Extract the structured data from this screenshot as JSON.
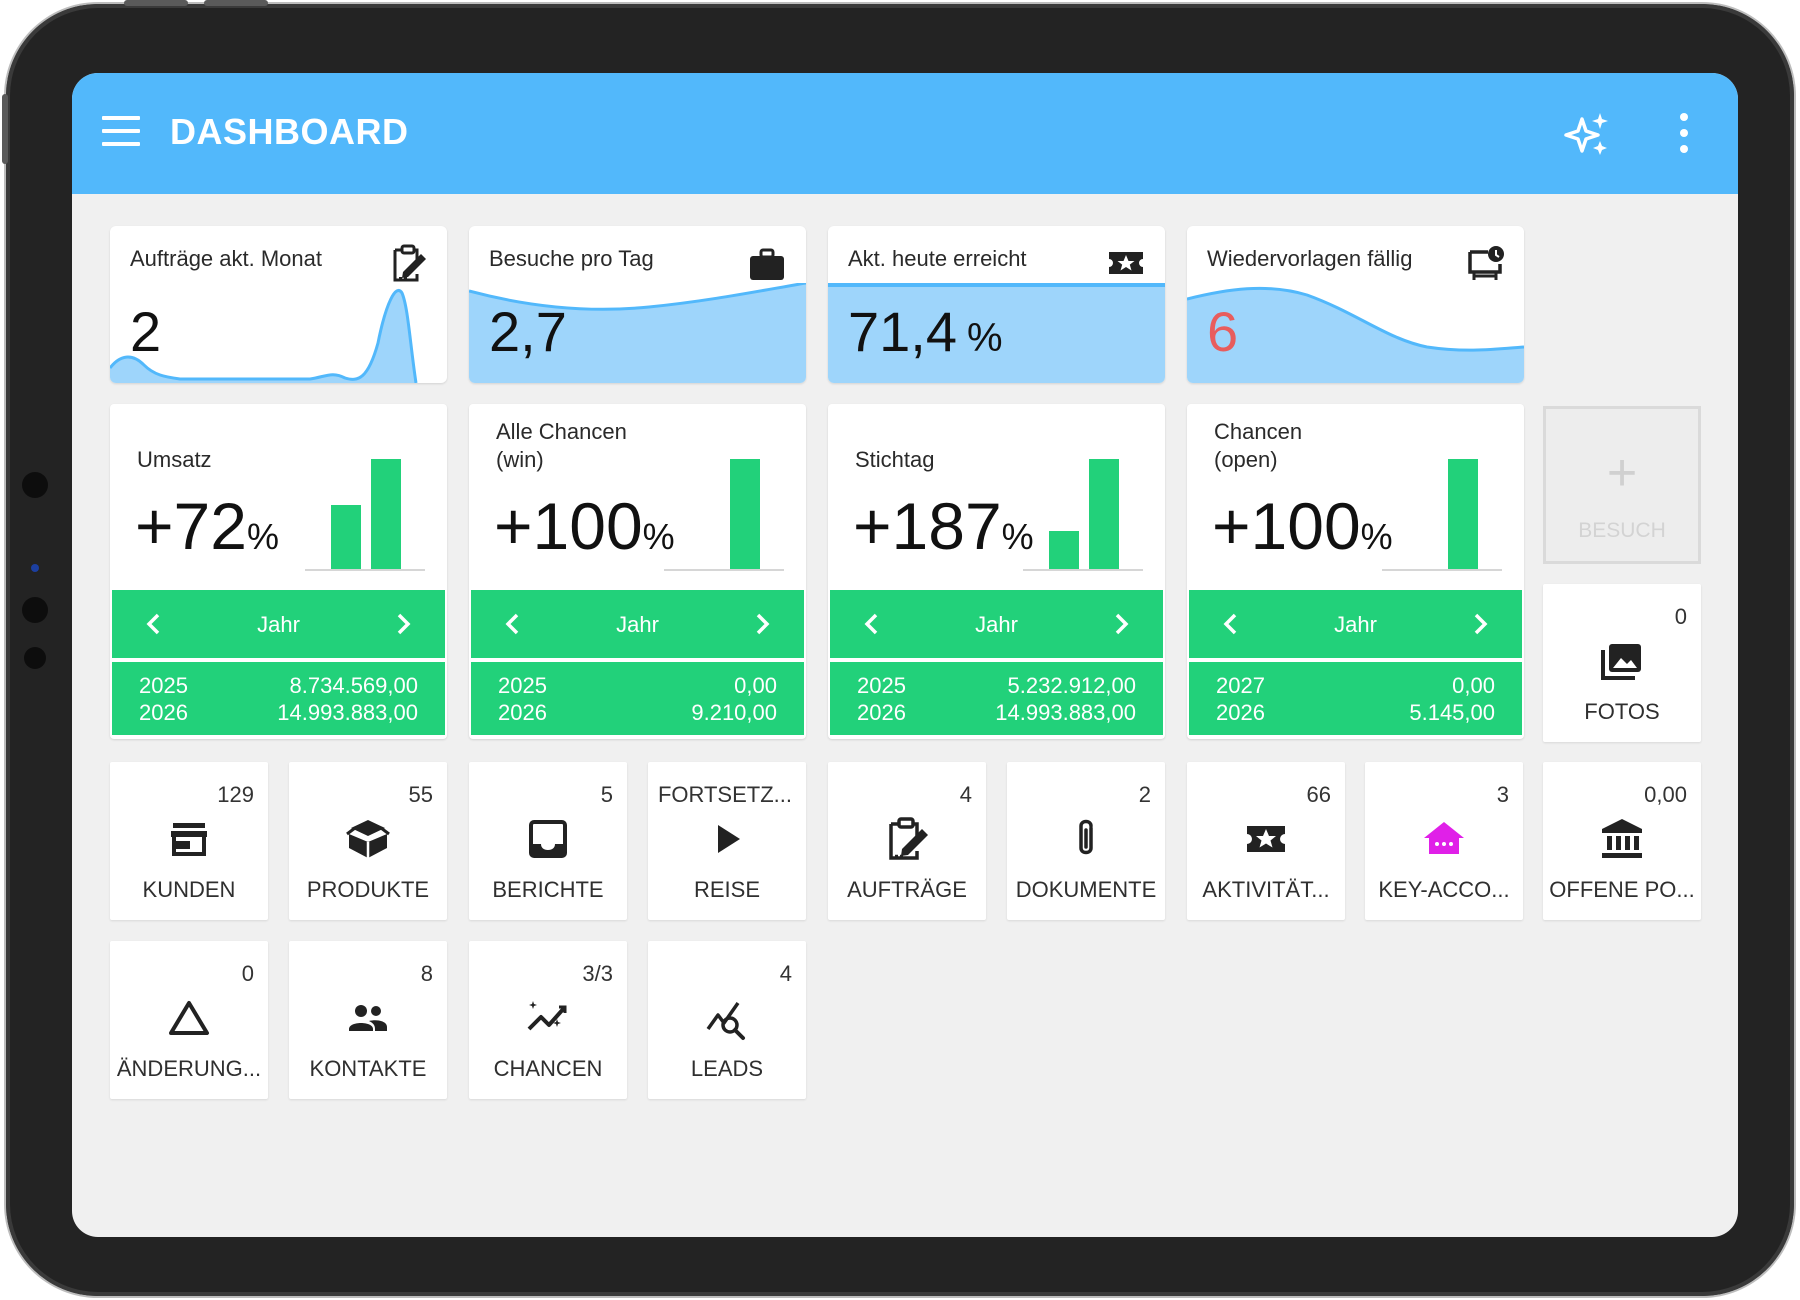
{
  "app": {
    "title": "DASHBOARD",
    "accent_color": "#52b8fb",
    "positive_color": "#22d17a",
    "header_icons": [
      "menu-icon",
      "sparkle-icon",
      "more-vert-icon"
    ]
  },
  "kpi_cards": [
    {
      "label": "Aufträge akt. Monat",
      "value": "2",
      "unit": "",
      "icon": "assignment-edit-icon"
    },
    {
      "label": "Besuche pro Tag",
      "value": "2,7",
      "unit": "",
      "icon": "briefcase-icon"
    },
    {
      "label": "Akt. heute erreicht",
      "value": "71,4",
      "unit": "%",
      "icon": "local-activity-icon"
    },
    {
      "label": "Wiedervorlagen fällig",
      "value": "6",
      "unit": "",
      "icon": "resubmission-icon",
      "value_color": "#e85d5d"
    }
  ],
  "trend_cards": [
    {
      "label_line1": "Umsatz",
      "label_line2": "",
      "value": "+72",
      "pct": "%",
      "period": "Jahr",
      "rows": [
        {
          "year": "2025",
          "amount": "8.734.569,00"
        },
        {
          "year": "2026",
          "amount": "14.993.883,00"
        }
      ],
      "bars": [
        8734569.0,
        14993883.0
      ]
    },
    {
      "label_line1": "Alle Chancen",
      "label_line2": "(win)",
      "value": "+100",
      "pct": "%",
      "period": "Jahr",
      "rows": [
        {
          "year": "2025",
          "amount": "0,00"
        },
        {
          "year": "2026",
          "amount": "9.210,00"
        }
      ],
      "bars": [
        0.0,
        9210.0
      ]
    },
    {
      "label_line1": "Stichtag",
      "label_line2": "",
      "value": "+187",
      "pct": "%",
      "period": "Jahr",
      "rows": [
        {
          "year": "2025",
          "amount": "5.232.912,00"
        },
        {
          "year": "2026",
          "amount": "14.993.883,00"
        }
      ],
      "bars": [
        5232912.0,
        14993883.0
      ]
    },
    {
      "label_line1": "Chancen",
      "label_line2": "(open)",
      "value": "+100",
      "pct": "%",
      "period": "Jahr",
      "rows": [
        {
          "year": "2027",
          "amount": "0,00"
        },
        {
          "year": "2026",
          "amount": "5.145,00"
        }
      ],
      "bars": [
        0.0,
        5145.0
      ]
    }
  ],
  "add_visit": {
    "label": "BESUCH",
    "icon": "plus-icon"
  },
  "tiles": [
    {
      "label": "FOTOS",
      "count": "0",
      "icon": "photo-library-icon"
    },
    {
      "label": "KUNDEN",
      "count": "129",
      "icon": "store-icon"
    },
    {
      "label": "PRODUKTE",
      "count": "55",
      "icon": "box-icon"
    },
    {
      "label": "BERICHTE",
      "count": "5",
      "icon": "inbox-icon"
    },
    {
      "label": "REISE",
      "count": "FORTSETZ...",
      "icon": "play-icon"
    },
    {
      "label": "AUFTRÄGE",
      "count": "4",
      "icon": "assignment-edit-icon"
    },
    {
      "label": "DOKUMENTE",
      "count": "2",
      "icon": "attachment-icon"
    },
    {
      "label": "AKTIVITÄT...",
      "count": "66",
      "icon": "local-activity-icon"
    },
    {
      "label": "KEY-ACCO...",
      "count": "3",
      "icon": "key-account-house-icon",
      "icon_color": "#e020e8"
    },
    {
      "label": "OFFENE PO...",
      "count": "0,00",
      "icon": "bank-icon"
    },
    {
      "label": "ÄNDERUNG...",
      "count": "0",
      "icon": "triangle-icon"
    },
    {
      "label": "KONTAKTE",
      "count": "8",
      "icon": "people-icon"
    },
    {
      "label": "CHANCEN",
      "count": "3/3",
      "icon": "trending-icon"
    },
    {
      "label": "LEADS",
      "count": "4",
      "icon": "query-stats-icon"
    }
  ]
}
